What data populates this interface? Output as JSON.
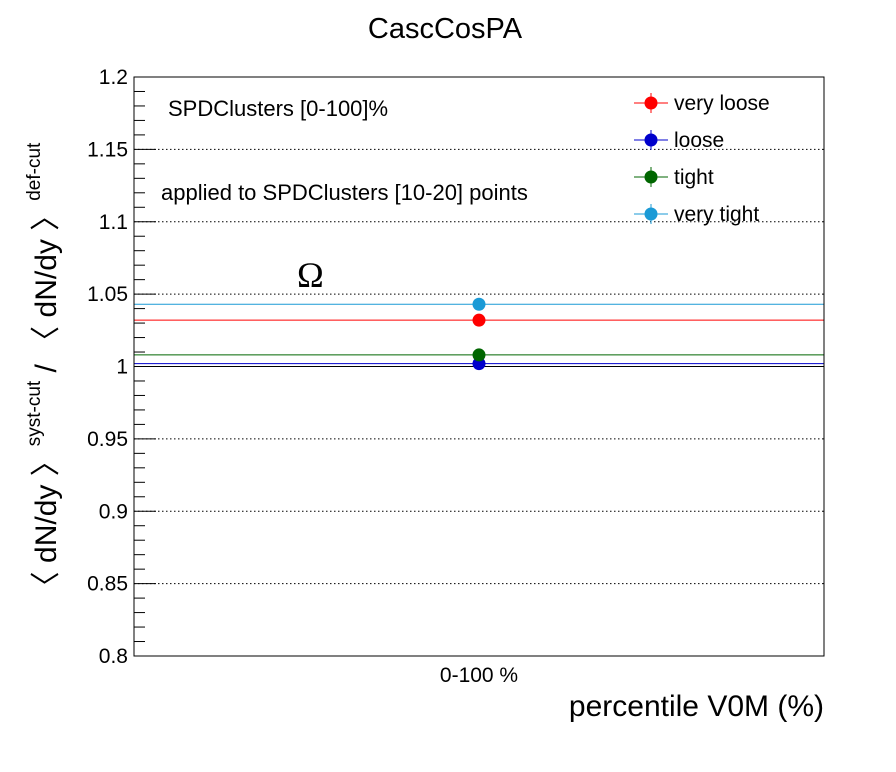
{
  "chart_data": {
    "type": "scatter",
    "title": "CascCosPA",
    "xlabel": "percentile V0M (%)",
    "ylabel": {
      "main1": "〈 dN/dy 〉",
      "sup1": "syst-cut",
      "sep": " / ",
      "main2": "〈 dN/dy 〉",
      "sup2": "def-cut"
    },
    "categories": [
      "0-100 %"
    ],
    "ylim": [
      0.8,
      1.2
    ],
    "yticks": [
      "0.8",
      "0.85",
      "0.9",
      "0.95",
      "1",
      "1.05",
      "1.1",
      "1.15",
      "1.2"
    ],
    "grid": true,
    "legend_position": "top-right",
    "annotations": [
      "SPDClusters [0-100]%",
      "applied to SPDClusters [10-20] points",
      "Ω"
    ],
    "reference_value": 1,
    "series": [
      {
        "name": "very loose",
        "color": "#ff0000",
        "values": [
          1.032
        ]
      },
      {
        "name": "loose",
        "color": "#0000cc",
        "values": [
          1.002
        ]
      },
      {
        "name": "tight",
        "color": "#006600",
        "values": [
          1.008
        ]
      },
      {
        "name": "very tight",
        "color": "#1a9ad6",
        "values": [
          1.043
        ]
      }
    ]
  }
}
